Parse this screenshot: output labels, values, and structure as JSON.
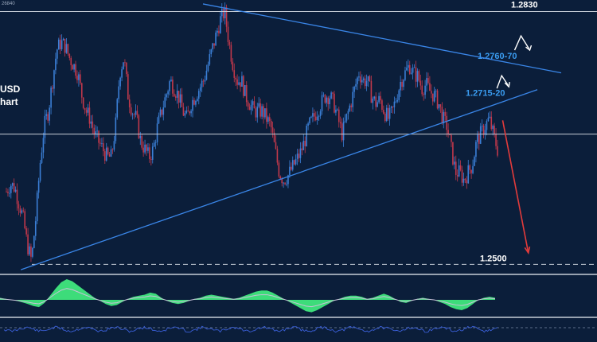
{
  "chart_data": {
    "type": "candlestick",
    "title_lines": [
      "USD",
      "hart"
    ],
    "corner_value": "26840",
    "colors": {
      "background": "#0b1e3a",
      "bull_candle": "#3b7fd6",
      "bear_candle": "#c0384b",
      "trendline": "#3a86e8",
      "level_line": "#c8ced8",
      "forecast_arrow": "#e23b3b",
      "oscillator_fill": "#3ddc7a",
      "secondary_indicator": "#3a5fd8"
    },
    "levels": [
      {
        "label": "1.2830",
        "value": 1.283,
        "style": "solid",
        "color": "#ffffff"
      },
      {
        "label": "1.2760-70",
        "value": 1.2765,
        "style": "none",
        "color": "#3a9cf0"
      },
      {
        "label": "1.2715-20",
        "value": 1.2717,
        "style": "none",
        "color": "#3a9cf0"
      },
      {
        "label": "",
        "value": 1.267,
        "style": "solid",
        "color": "#c8ced8"
      },
      {
        "label": "1.2500",
        "value": 1.25,
        "style": "dashed",
        "color": "#ffffff"
      }
    ],
    "price_ylim": [
      1.249,
      1.2842
    ],
    "price_series": [
      1.2595,
      1.2605,
      1.26,
      1.258,
      1.256,
      1.2525,
      1.2505,
      1.256,
      1.263,
      1.268,
      1.27,
      1.274,
      1.278,
      1.279,
      1.2785,
      1.277,
      1.276,
      1.275,
      1.272,
      1.27,
      1.269,
      1.267,
      1.266,
      1.265,
      1.264,
      1.264,
      1.268,
      1.275,
      1.277,
      1.272,
      1.27,
      1.269,
      1.266,
      1.265,
      1.264,
      1.265,
      1.268,
      1.27,
      1.272,
      1.274,
      1.273,
      1.272,
      1.27,
      1.269,
      1.271,
      1.272,
      1.273,
      1.274,
      1.276,
      1.278,
      1.28,
      1.282,
      1.283,
      1.279,
      1.276,
      1.274,
      1.274,
      1.272,
      1.271,
      1.27,
      1.27,
      1.27,
      1.269,
      1.268,
      1.265,
      1.262,
      1.261,
      1.2615,
      1.2625,
      1.2635,
      1.2645,
      1.266,
      1.268,
      1.269,
      1.27,
      1.271,
      1.272,
      1.272,
      1.271,
      1.269,
      1.267,
      1.269,
      1.271,
      1.273,
      1.275,
      1.274,
      1.274,
      1.272,
      1.271,
      1.2715,
      1.27,
      1.269,
      1.27,
      1.272,
      1.274,
      1.275,
      1.276,
      1.275,
      1.2745,
      1.273,
      1.2735,
      1.2725,
      1.272,
      1.271,
      1.269,
      1.268,
      1.265,
      1.262,
      1.262,
      1.261,
      1.262,
      1.263,
      1.266,
      1.267,
      1.268,
      1.269,
      1.267,
      1.265
    ],
    "trendlines": [
      {
        "name": "upper",
        "from": [
          0.34,
          1.284
        ],
        "to": [
          0.94,
          1.275
        ]
      },
      {
        "name": "lower",
        "from": [
          0.035,
          1.2493
        ],
        "to": [
          0.9,
          1.2728
        ]
      }
    ],
    "forecast_arrow": {
      "from": [
        0.842,
        1.2688
      ],
      "to": [
        0.885,
        1.2515
      ]
    },
    "scenario_marks": [
      {
        "at": [
          0.878,
          1.279
        ],
        "direction": "up-then-down"
      },
      {
        "at": [
          0.843,
          1.2738
        ],
        "direction": "up"
      }
    ],
    "oscillator": {
      "values": [
        0.1,
        0.05,
        0.0,
        -0.05,
        -0.12,
        -0.2,
        -0.3,
        -0.35,
        -0.15,
        0.2,
        0.55,
        0.85,
        1.0,
        0.9,
        0.7,
        0.5,
        0.3,
        0.1,
        -0.05,
        -0.2,
        -0.3,
        -0.25,
        -0.1,
        0.05,
        0.15,
        0.2,
        0.25,
        0.35,
        0.3,
        0.1,
        -0.05,
        -0.15,
        -0.2,
        -0.15,
        -0.05,
        0.05,
        0.1,
        0.2,
        0.25,
        0.2,
        0.15,
        0.1,
        0.05,
        0.1,
        0.2,
        0.3,
        0.4,
        0.45,
        0.45,
        0.35,
        0.2,
        0.05,
        -0.1,
        -0.25,
        -0.4,
        -0.55,
        -0.6,
        -0.5,
        -0.35,
        -0.2,
        -0.05,
        0.05,
        0.15,
        0.2,
        0.2,
        0.15,
        0.05,
        0.1,
        0.2,
        0.3,
        0.2,
        0.05,
        -0.1,
        -0.15,
        -0.05,
        0.05,
        0.1,
        0.05,
        0.0,
        -0.1,
        -0.2,
        -0.35,
        -0.45,
        -0.5,
        -0.4,
        -0.2,
        0.0,
        0.1,
        0.15,
        0.1
      ]
    }
  }
}
